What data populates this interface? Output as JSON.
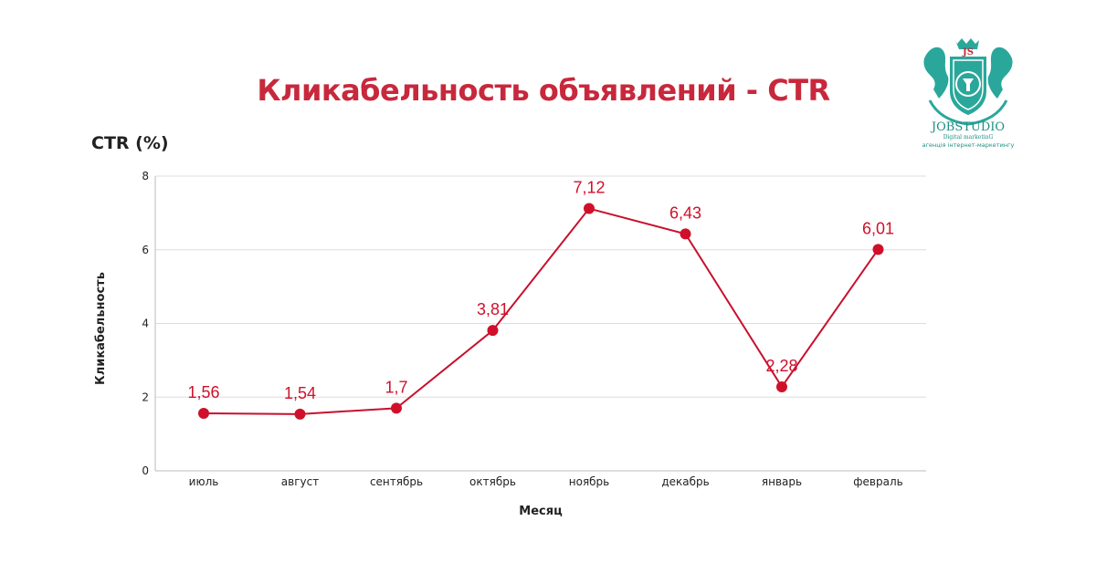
{
  "header": {
    "title": "Кликабельность объявлений - CTR",
    "unit": "CTR (%)"
  },
  "logo": {
    "monogram": "JS",
    "name": "JOBSTUDIO",
    "tagline": "Digital marketinG",
    "subtitle": "агенція інтернет-маркетингу",
    "icon": "jobstudio-crest-icon"
  },
  "colors": {
    "title": "#c8283c",
    "line": "#c8102e",
    "point": "#d0102b",
    "label": "#d0102b",
    "grid": "#dddddd",
    "logo_teal": "#2aa79b"
  },
  "chart_data": {
    "type": "line",
    "categories": [
      "июль",
      "август",
      "сентябрь",
      "октябрь",
      "ноябрь",
      "декабрь",
      "январь",
      "февраль"
    ],
    "series": [
      {
        "values": [
          1.56,
          1.54,
          1.7,
          3.81,
          7.12,
          6.43,
          2.28,
          6.01
        ],
        "labels": [
          "1,56",
          "1,54",
          "1,7",
          "3,81",
          "7,12",
          "6,43",
          "2,28",
          "6,01"
        ]
      }
    ],
    "title": "Кликабельность объявлений - CTR",
    "xlabel": "Месяц",
    "ylabel": "Кликабельность",
    "ylim": [
      0,
      8
    ],
    "yticks": [
      0,
      2,
      4,
      6,
      8
    ],
    "grid": true
  }
}
